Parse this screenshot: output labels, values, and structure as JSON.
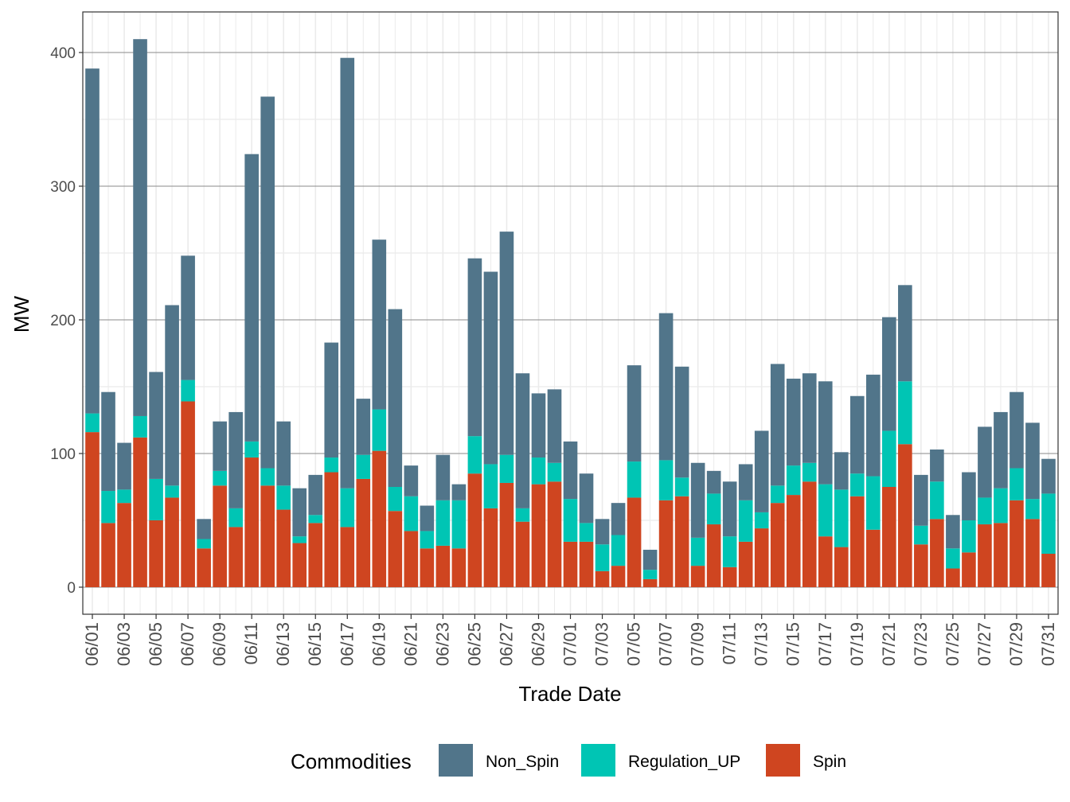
{
  "chart_data": {
    "type": "bar",
    "stacked": true,
    "title": "",
    "xlabel": "Trade Date",
    "ylabel": "MW",
    "ylim": [
      -18,
      430
    ],
    "yticks": [
      0,
      100,
      200,
      300,
      400
    ],
    "grid": true,
    "legend_position": "bottom",
    "legend_title": "Commodities",
    "categories": [
      "06/01",
      "06/02",
      "06/03",
      "06/04",
      "06/05",
      "06/06",
      "06/07",
      "06/08",
      "06/09",
      "06/10",
      "06/11",
      "06/12",
      "06/13",
      "06/14",
      "06/15",
      "06/16",
      "06/17",
      "06/18",
      "06/19",
      "06/20",
      "06/21",
      "06/22",
      "06/23",
      "06/24",
      "06/25",
      "06/26",
      "06/27",
      "06/28",
      "06/29",
      "06/30",
      "07/01",
      "07/02",
      "07/03",
      "07/04",
      "07/05",
      "07/06",
      "07/07",
      "07/08",
      "07/09",
      "07/10",
      "07/11",
      "07/12",
      "07/13",
      "07/14",
      "07/15",
      "07/16",
      "07/17",
      "07/18",
      "07/19",
      "07/20",
      "07/21",
      "07/22",
      "07/23",
      "07/24",
      "07/25",
      "07/26",
      "07/27",
      "07/28",
      "07/29",
      "07/30",
      "07/31"
    ],
    "xtick_labels": [
      "06/01",
      "06/03",
      "06/05",
      "06/07",
      "06/09",
      "06/11",
      "06/13",
      "06/15",
      "06/17",
      "06/19",
      "06/21",
      "06/23",
      "06/25",
      "06/27",
      "06/29",
      "07/01",
      "07/03",
      "07/05",
      "07/07",
      "07/09",
      "07/11",
      "07/13",
      "07/15",
      "07/17",
      "07/19",
      "07/21",
      "07/23",
      "07/25",
      "07/27",
      "07/29",
      "07/31"
    ],
    "series": [
      {
        "name": "Spin",
        "color": "#cf4520",
        "values": [
          116,
          48,
          63,
          112,
          50,
          67,
          139,
          29,
          76,
          45,
          97,
          76,
          58,
          33,
          48,
          86,
          45,
          81,
          102,
          57,
          42,
          29,
          31,
          29,
          85,
          59,
          78,
          49,
          77,
          79,
          34,
          34,
          12,
          16,
          67,
          6,
          65,
          68,
          16,
          47,
          15,
          34,
          44,
          63,
          69,
          79,
          38,
          30,
          68,
          43,
          75,
          107,
          32,
          51,
          14,
          26,
          47,
          48,
          65,
          51,
          25
        ]
      },
      {
        "name": "Regulation_UP",
        "color": "#00c5b4",
        "values": [
          14,
          24,
          10,
          16,
          31,
          9,
          16,
          7,
          11,
          14,
          12,
          13,
          18,
          5,
          6,
          11,
          29,
          18,
          31,
          18,
          26,
          13,
          34,
          36,
          28,
          33,
          21,
          10,
          20,
          14,
          32,
          14,
          20,
          23,
          27,
          7,
          30,
          14,
          21,
          23,
          23,
          31,
          12,
          13,
          22,
          14,
          39,
          43,
          17,
          40,
          42,
          47,
          14,
          28,
          15,
          24,
          20,
          26,
          24,
          15,
          45
        ]
      },
      {
        "name": "Non_Spin",
        "color": "#51758a",
        "values": [
          258,
          74,
          35,
          282,
          80,
          135,
          93,
          15,
          37,
          72,
          215,
          278,
          48,
          36,
          30,
          86,
          322,
          42,
          127,
          133,
          23,
          19,
          34,
          12,
          133,
          144,
          167,
          101,
          48,
          55,
          43,
          37,
          19,
          24,
          72,
          15,
          110,
          83,
          56,
          17,
          41,
          27,
          61,
          91,
          65,
          67,
          77,
          28,
          58,
          76,
          85,
          72,
          38,
          24,
          25,
          36,
          53,
          57,
          57,
          57,
          26
        ]
      }
    ]
  }
}
